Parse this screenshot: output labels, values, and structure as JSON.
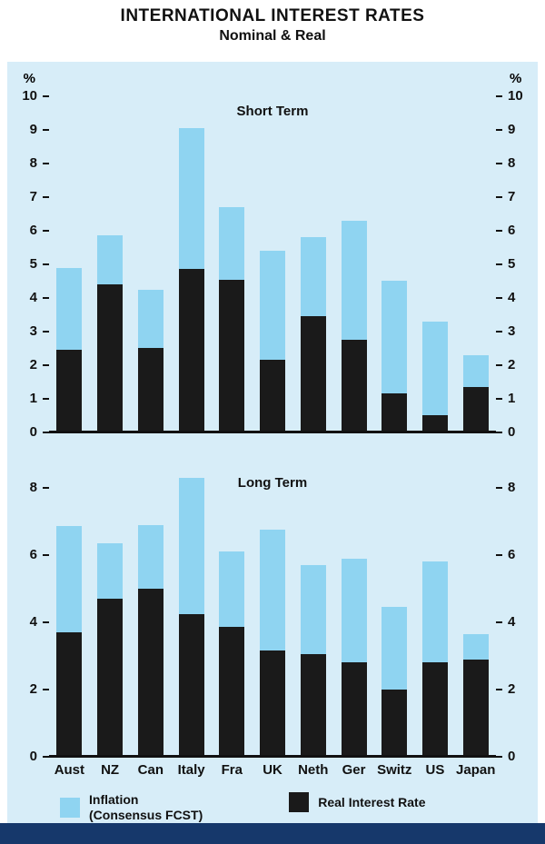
{
  "title": "INTERNATIONAL INTEREST RATES",
  "subtitle": "Nominal & Real",
  "percent_symbol": "%",
  "colors": {
    "panel_background": "#d7edf8",
    "inflation_bar": "#8fd4f1",
    "real_bar": "#1a1a1a",
    "footer_strip": "#16386b",
    "axis": "#111111"
  },
  "legend": {
    "inflation": {
      "line1": "Inflation",
      "line2": "(Consensus FCST)"
    },
    "real": {
      "label": "Real Interest Rate"
    }
  },
  "chart_data": [
    {
      "type": "bar",
      "stacked": true,
      "title": "Short Term",
      "categories": [
        "Aust",
        "NZ",
        "Can",
        "Italy",
        "Fra",
        "UK",
        "Neth",
        "Ger",
        "Switz",
        "US",
        "Japan"
      ],
      "series": [
        {
          "name": "Real Interest Rate",
          "values": [
            2.4,
            4.35,
            2.45,
            4.8,
            4.5,
            2.1,
            3.4,
            2.7,
            1.1,
            0.45,
            1.3
          ]
        },
        {
          "name": "Inflation (Consensus FCST)",
          "values": [
            2.45,
            1.45,
            1.75,
            4.2,
            2.15,
            3.25,
            2.35,
            3.55,
            3.35,
            2.8,
            0.95
          ]
        }
      ],
      "totals": [
        4.85,
        5.8,
        4.2,
        9.0,
        6.65,
        5.35,
        5.75,
        6.25,
        4.45,
        3.25,
        2.25
      ],
      "ylabel": "%",
      "ylim": [
        0,
        10
      ],
      "yticks": [
        0,
        1,
        2,
        3,
        4,
        5,
        6,
        7,
        8,
        9,
        10
      ],
      "headroom_units": 0,
      "show_percent": true,
      "legend_position": "bottom",
      "grid": false
    },
    {
      "type": "bar",
      "stacked": true,
      "title": "Long Term",
      "categories": [
        "Aust",
        "NZ",
        "Can",
        "Italy",
        "Fra",
        "UK",
        "Neth",
        "Ger",
        "Switz",
        "US",
        "Japan"
      ],
      "series": [
        {
          "name": "Real Interest Rate",
          "values": [
            3.65,
            4.65,
            4.95,
            4.2,
            3.8,
            3.1,
            3.0,
            2.75,
            1.95,
            2.75,
            2.85
          ]
        },
        {
          "name": "Inflation (Consensus FCST)",
          "values": [
            3.15,
            1.65,
            1.9,
            4.05,
            2.25,
            3.6,
            2.65,
            3.1,
            2.45,
            3.0,
            0.75
          ]
        }
      ],
      "totals": [
        6.8,
        6.3,
        6.85,
        8.25,
        6.05,
        6.7,
        5.65,
        5.85,
        4.4,
        5.75,
        3.6
      ],
      "ylabel": "",
      "ylim": [
        0,
        8
      ],
      "yticks": [
        0,
        2,
        4,
        6,
        8
      ],
      "headroom_units": 0.6,
      "show_percent": false,
      "legend_position": "bottom",
      "grid": false
    }
  ]
}
